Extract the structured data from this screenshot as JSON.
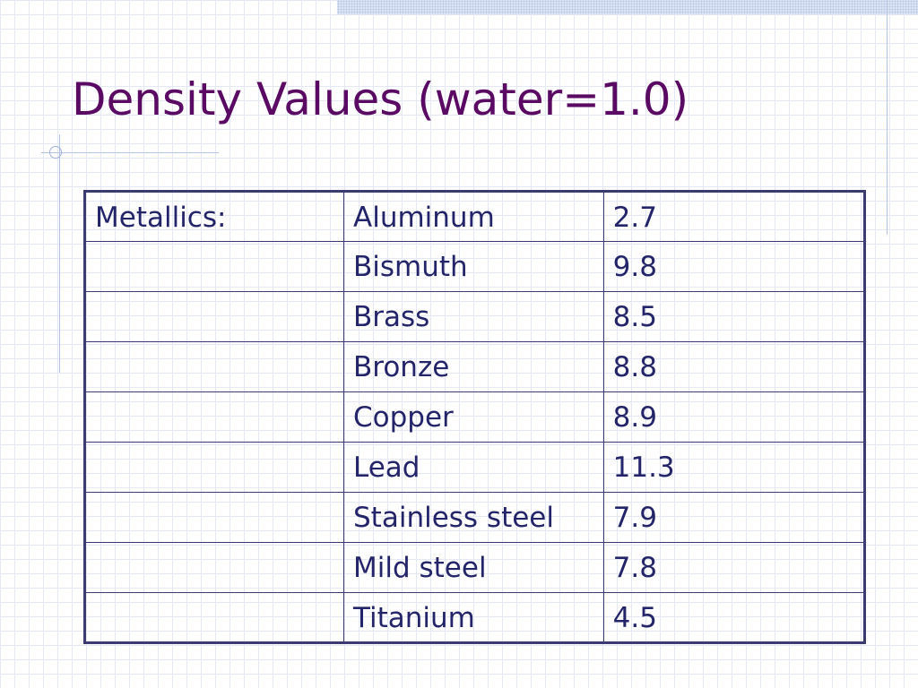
{
  "slide": {
    "title": "Density Values (water=1.0)"
  },
  "table": {
    "category_label": "Metallics:",
    "rows": [
      {
        "material": "Aluminum",
        "density": "2.7"
      },
      {
        "material": "Bismuth",
        "density": "9.8"
      },
      {
        "material": "Brass",
        "density": "8.5"
      },
      {
        "material": "Bronze",
        "density": "8.8"
      },
      {
        "material": "Copper",
        "density": "8.9"
      },
      {
        "material": "Lead",
        "density": "11.3"
      },
      {
        "material": "Stainless steel",
        "density": "7.9"
      },
      {
        "material": "Mild steel",
        "density": "7.8"
      },
      {
        "material": "Titanium",
        "density": "4.5"
      }
    ]
  },
  "colors": {
    "title": "#5a0a63",
    "text": "#24246a",
    "border": "#3b3b72",
    "grid": "#e3e8f3"
  }
}
